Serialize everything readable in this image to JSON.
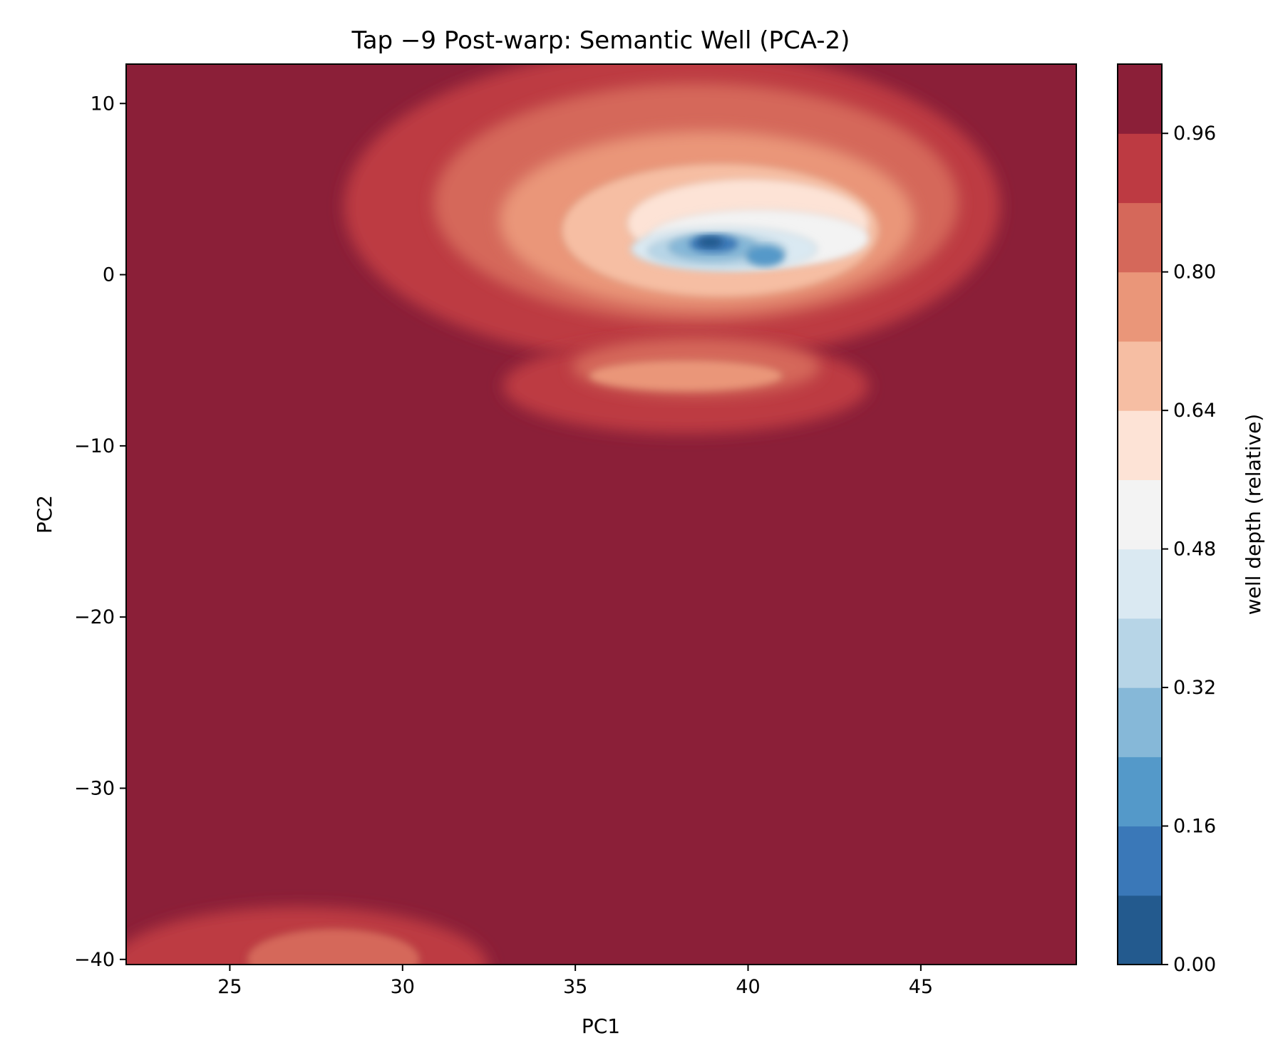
{
  "chart_data": {
    "type": "heatmap",
    "title": "Tap −9 Post-warp: Semantic Well (PCA-2)",
    "xlabel": "PC1",
    "ylabel": "PC2",
    "xlim": [
      22,
      49.5
    ],
    "ylim": [
      -40.3,
      12.3
    ],
    "xticks": [
      25,
      30,
      35,
      40,
      45
    ],
    "yticks": [
      10,
      0,
      -10,
      -20,
      -30,
      -40
    ],
    "x_tick_labels": [
      "25",
      "30",
      "35",
      "40",
      "45"
    ],
    "y_tick_labels": [
      "10",
      "0",
      "−10",
      "−20",
      "−30",
      "−40"
    ],
    "colorbar": {
      "label": "well depth (relative)",
      "range": [
        0.0,
        1.04
      ],
      "ticks": [
        0.0,
        0.16,
        0.32,
        0.48,
        0.64,
        0.8,
        0.96
      ],
      "tick_labels": [
        "0.00",
        "0.16",
        "0.32",
        "0.48",
        "0.64",
        "0.80",
        "0.96"
      ],
      "levels": [
        0.0,
        0.08,
        0.16,
        0.24,
        0.32,
        0.4,
        0.48,
        0.56,
        0.64,
        0.72,
        0.8,
        0.88,
        0.96,
        1.04
      ],
      "colors": [
        "#235a8e",
        "#3a78b8",
        "#5499c9",
        "#86b8d8",
        "#b7d5e7",
        "#dae9f2",
        "#f3f3f3",
        "#fde3d6",
        "#f6bea3",
        "#ea9679",
        "#d5685a",
        "#bd3a42",
        "#8b1f38"
      ]
    },
    "wells": [
      {
        "center": [
          38.9,
          1.8
        ],
        "min_depth": 0.02,
        "note": "primary minimum"
      },
      {
        "center": [
          40.5,
          1.1
        ],
        "min_depth": 0.17
      },
      {
        "center": [
          38.3,
          -6.0
        ],
        "min_depth": 0.75
      },
      {
        "center": [
          27.5,
          -39.5
        ],
        "min_depth": 0.82
      }
    ]
  }
}
